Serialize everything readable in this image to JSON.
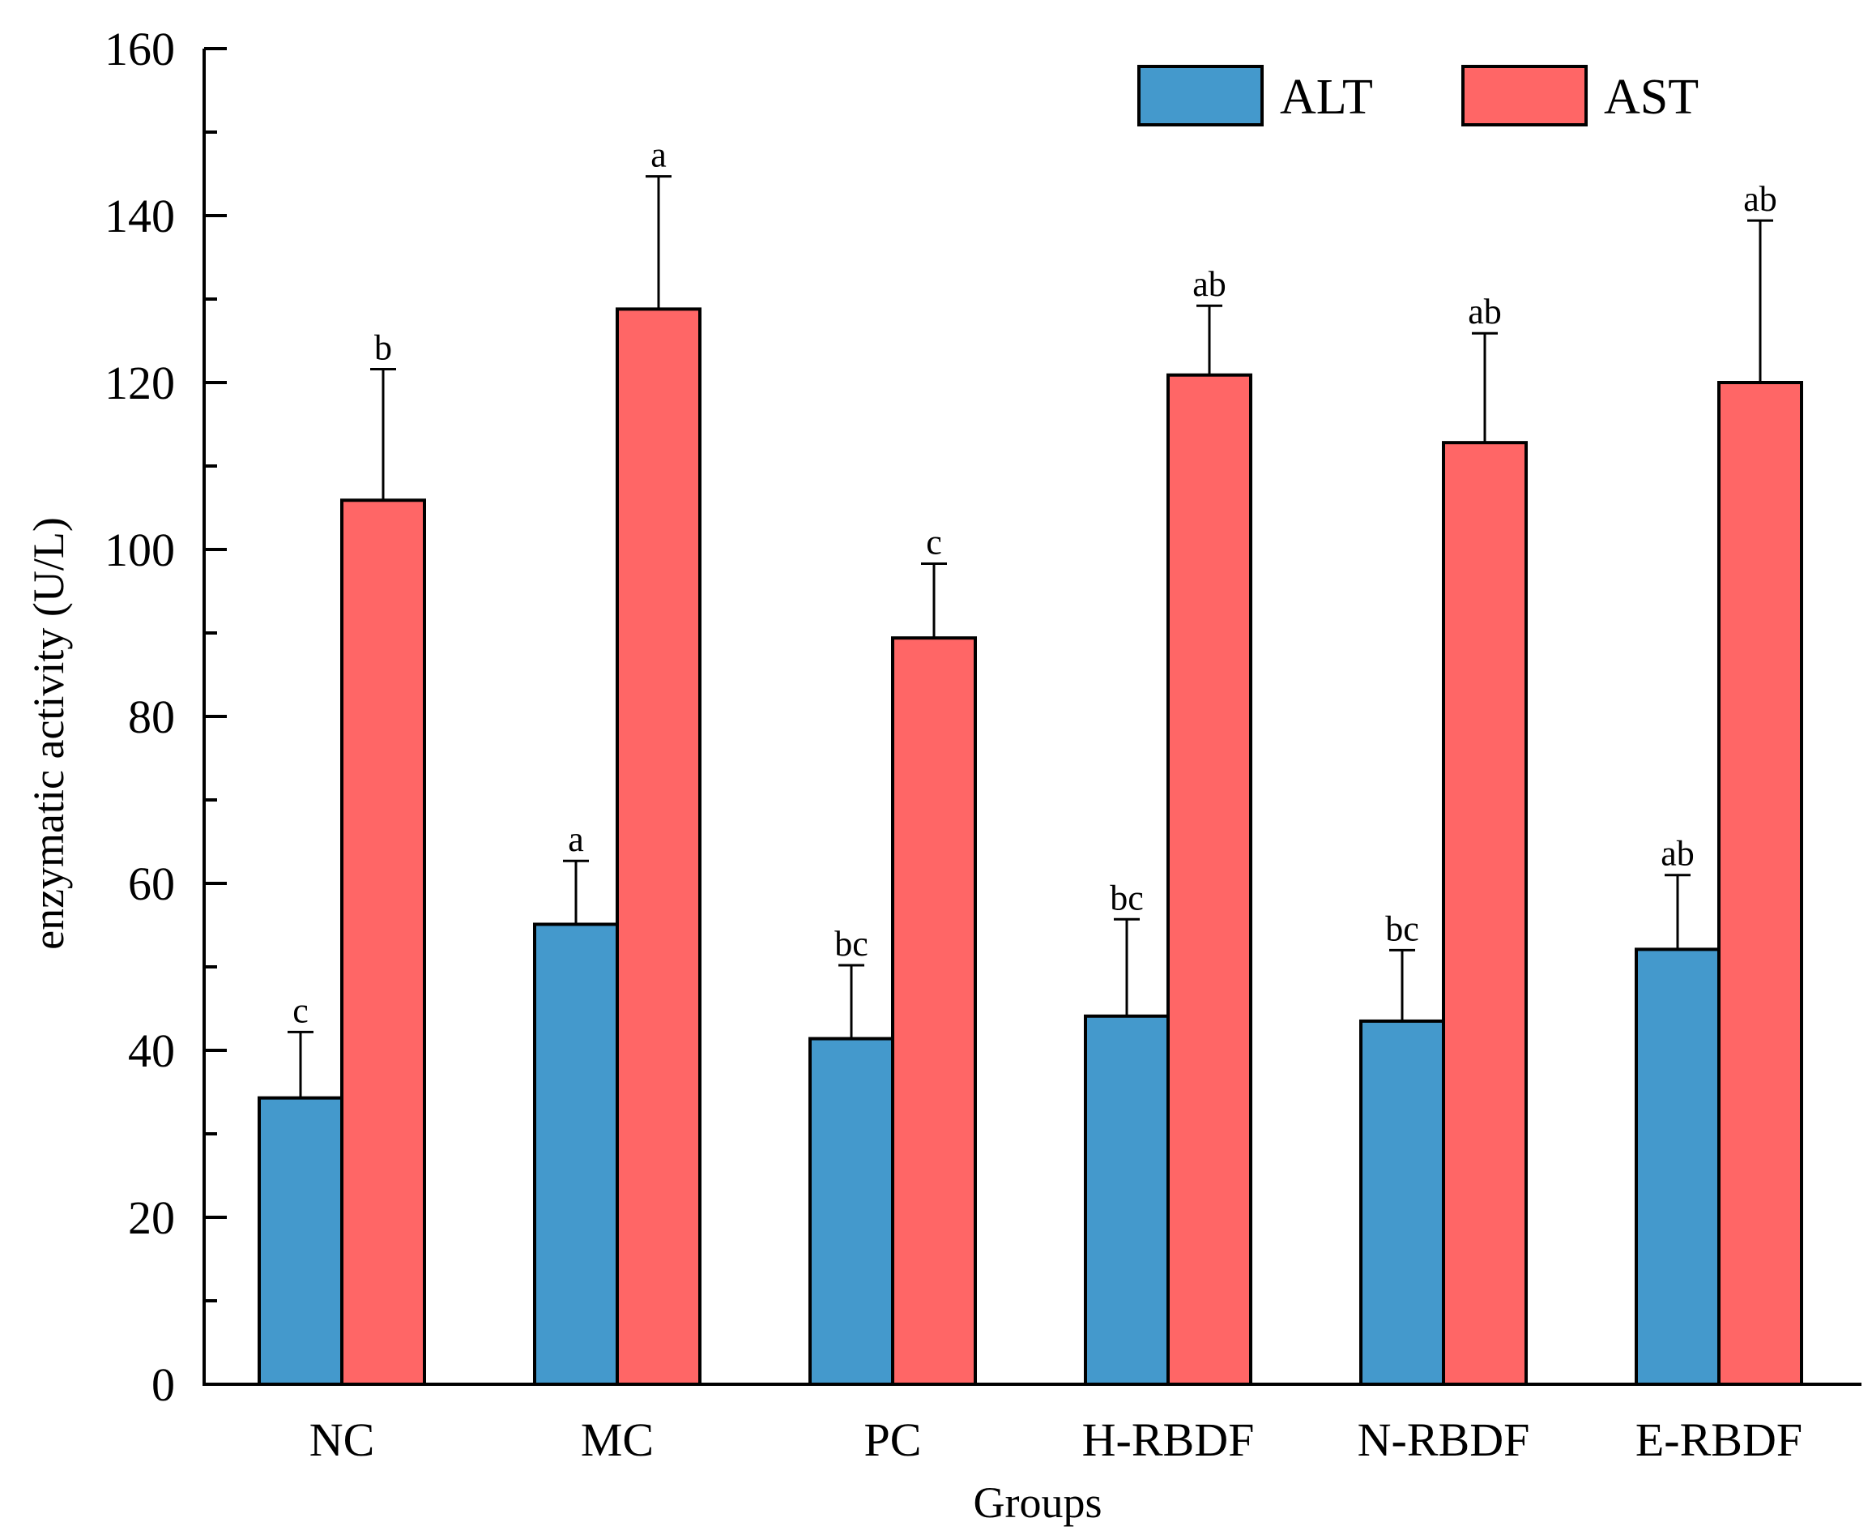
{
  "chart_data": {
    "type": "bar",
    "title": "",
    "xlabel": "Groups",
    "ylabel": "enzymatic activity (U/L)",
    "ylim": [
      0,
      160
    ],
    "yticks": [
      "0",
      "20",
      "40",
      "60",
      "80",
      "100",
      "120",
      "140",
      "160"
    ],
    "categories": [
      "NC",
      "MC",
      "PC",
      "H-RBDF",
      "N-RBDF",
      "E-RBDF"
    ],
    "legend_position": "top-right",
    "grid": false,
    "series": [
      {
        "name": "ALT",
        "color": "#4499CC",
        "values": [
          34.3,
          55.1,
          41.4,
          44.1,
          43.5,
          52.1
        ],
        "errors": [
          7.9,
          7.6,
          8.8,
          11.6,
          8.5,
          8.9
        ],
        "labels": [
          "c",
          "a",
          "bc",
          "bc",
          "bc",
          "ab"
        ]
      },
      {
        "name": "AST",
        "color": "#FF6666",
        "values": [
          105.9,
          128.8,
          89.4,
          120.9,
          112.8,
          120.0
        ],
        "errors": [
          15.7,
          15.9,
          8.9,
          8.3,
          13.1,
          19.4
        ],
        "labels": [
          "b",
          "a",
          "c",
          "ab",
          "ab",
          "ab"
        ]
      }
    ]
  }
}
